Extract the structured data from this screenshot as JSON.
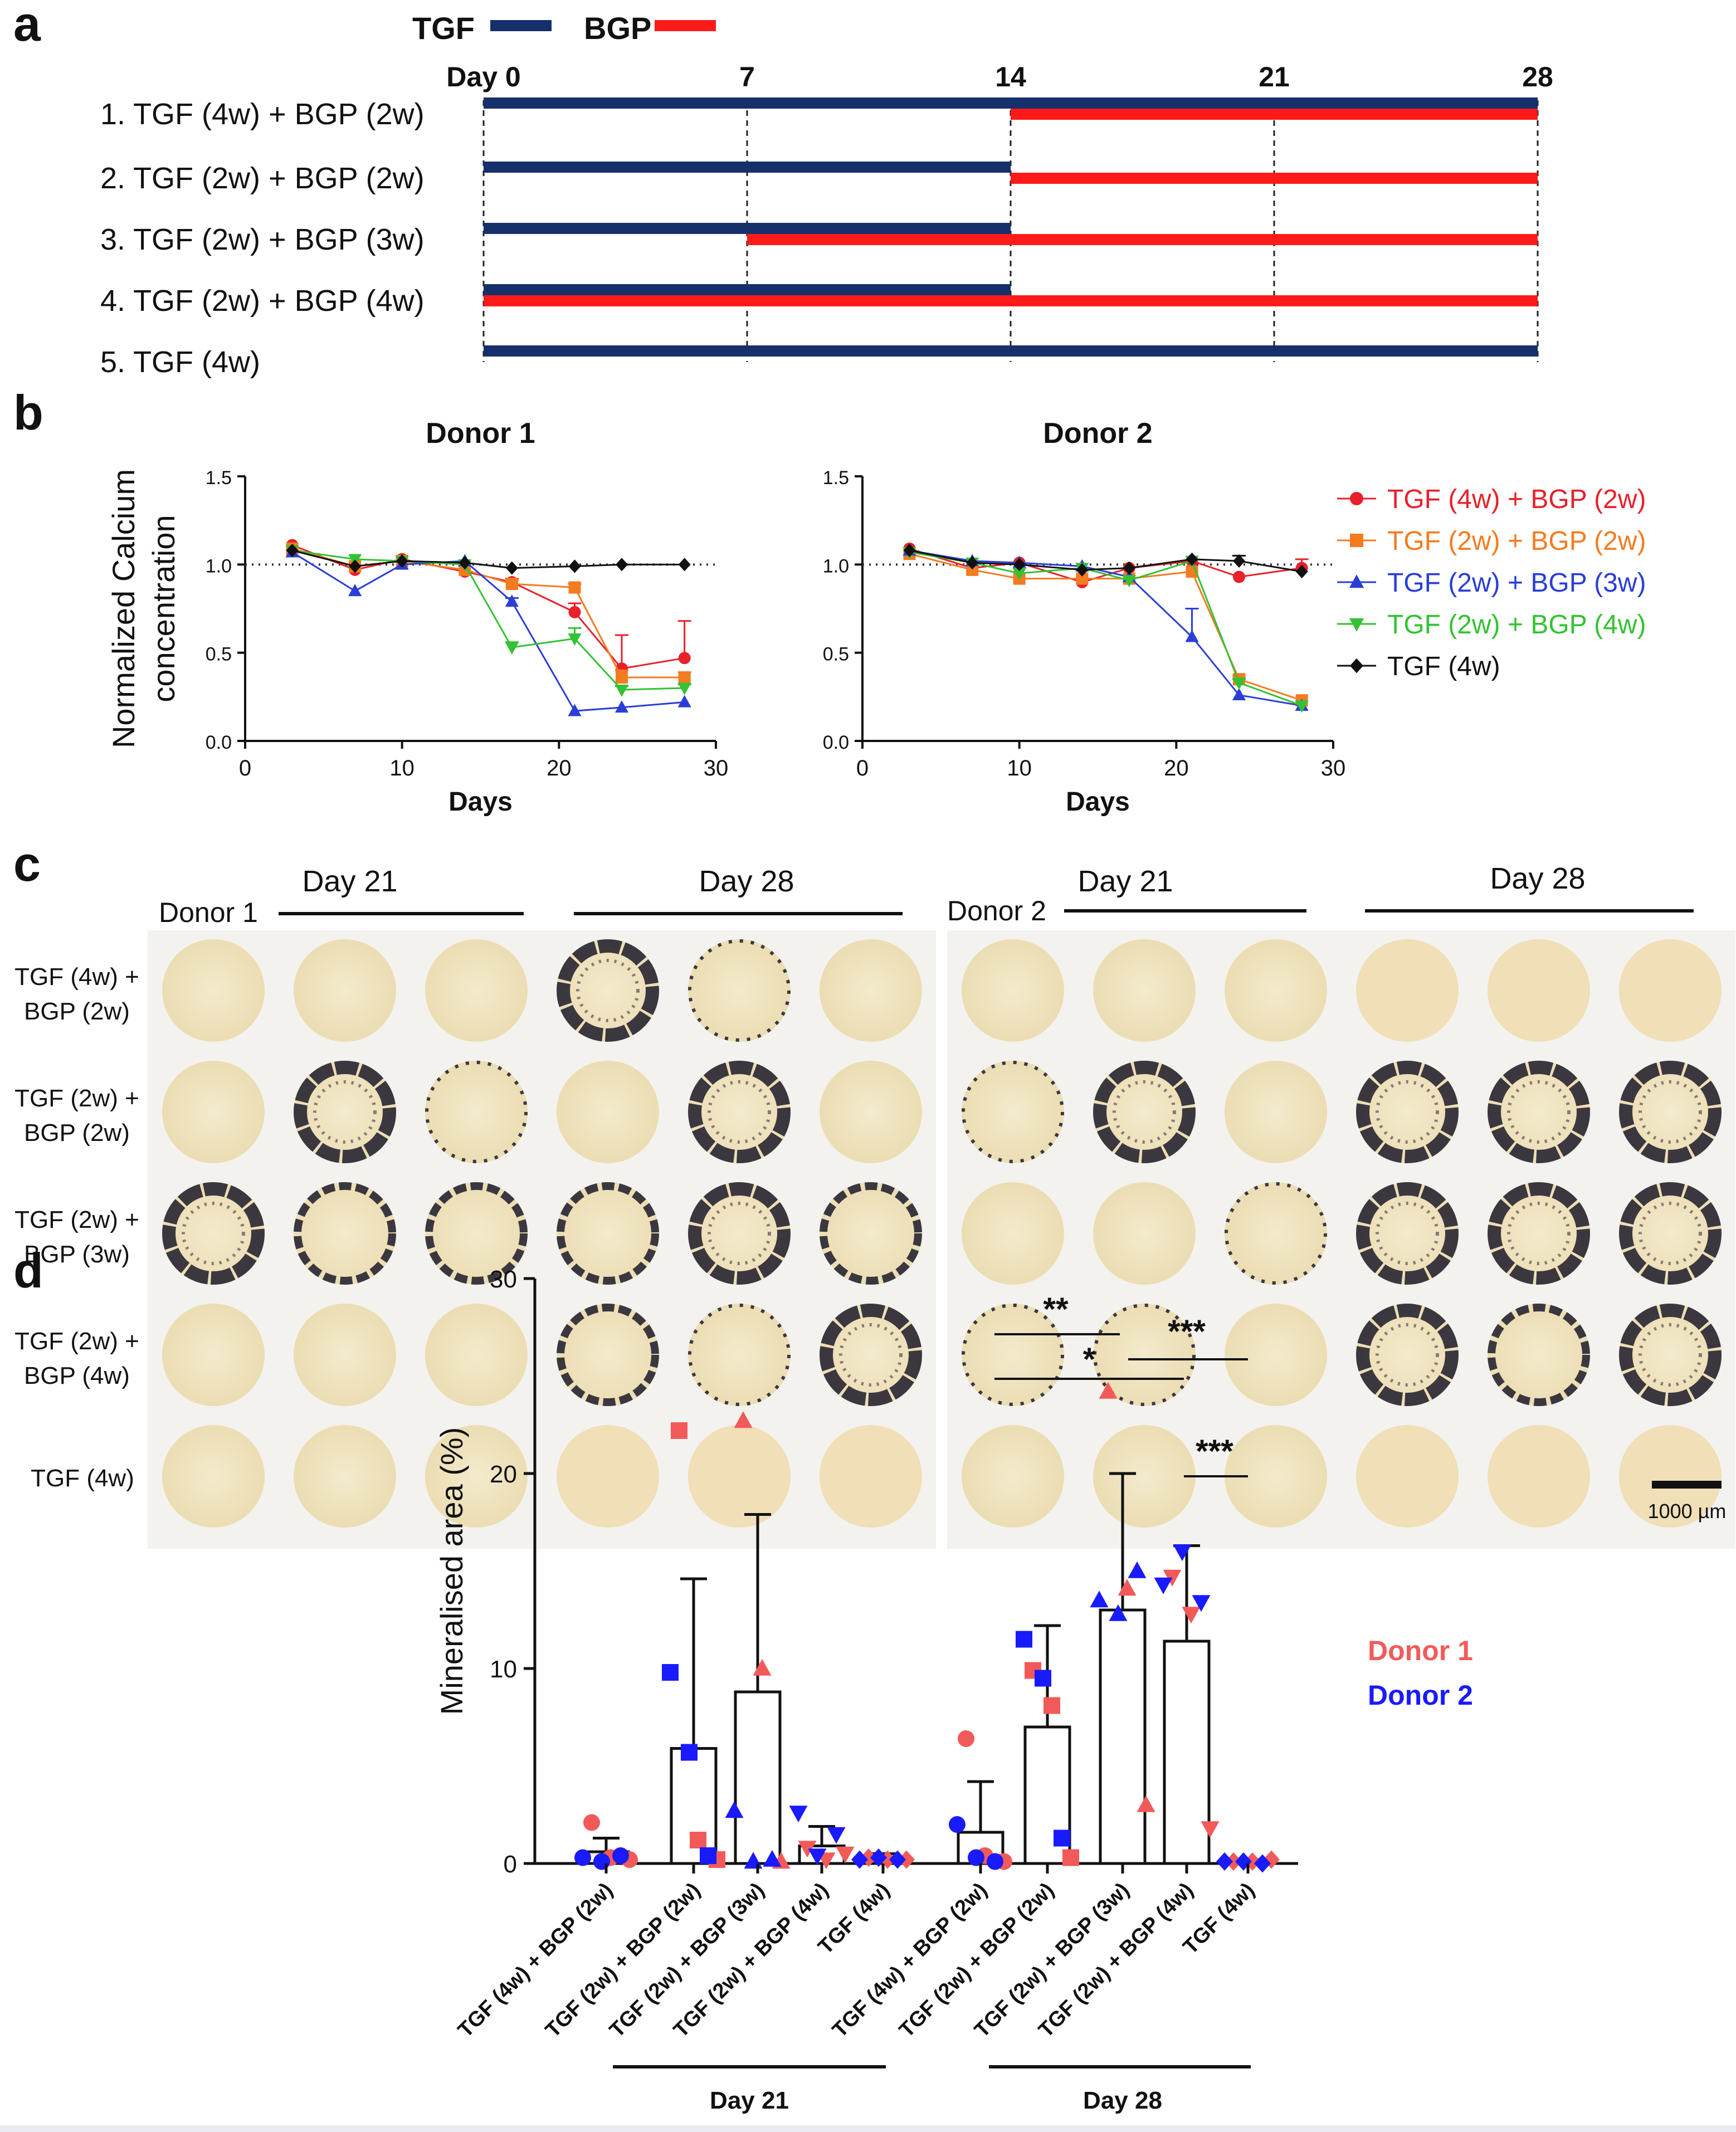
{
  "panels": {
    "a": "a",
    "b": "b",
    "c": "c",
    "d": "d"
  },
  "colors": {
    "tgf": "#15306b",
    "bgp": "#ff1a1a",
    "donor1": "#f25a5a",
    "donor2": "#1a1aff",
    "series": [
      "#e8202a",
      "#f47b20",
      "#2a3ed6",
      "#33c233",
      "#111111"
    ]
  },
  "panel_a": {
    "legend": {
      "tgf": "TGF",
      "bgp": "BGP"
    },
    "day_labels": [
      "Day 0",
      "7",
      "14",
      "21",
      "28"
    ],
    "rows": [
      {
        "label": "1. TGF (4w) + BGP (2w)",
        "tgf_days": [
          0,
          28
        ],
        "bgp_days": [
          14,
          28
        ]
      },
      {
        "label": "2. TGF (2w) + BGP (2w)",
        "tgf_days": [
          0,
          14
        ],
        "bgp_days": [
          14,
          28
        ]
      },
      {
        "label": "3. TGF (2w) + BGP (3w)",
        "tgf_days": [
          0,
          14
        ],
        "bgp_days": [
          7,
          28
        ]
      },
      {
        "label": "4. TGF (2w) + BGP (4w)",
        "tgf_days": [
          0,
          14
        ],
        "bgp_days": [
          0,
          28
        ]
      },
      {
        "label": "5. TGF (4w)",
        "tgf_days": [
          0,
          28
        ],
        "bgp_days": null
      }
    ]
  },
  "panel_c": {
    "group_labels": [
      "Day 21",
      "Day 28",
      "Day 21",
      "Day 28"
    ],
    "donor_labels": [
      "Donor 1",
      "Donor 2"
    ],
    "row_labels": [
      [
        "TGF (4w) +",
        "BGP (2w)"
      ],
      [
        "TGF (2w) +",
        "BGP (2w)"
      ],
      [
        "TGF (2w) +",
        "BGP (3w)"
      ],
      [
        "TGF (2w) +",
        "BGP (4w)"
      ],
      [
        "TGF (4w)"
      ]
    ],
    "scale_bar": "1000 µm",
    "mineral_grid": [
      [
        [
          0,
          0,
          0,
          3,
          1,
          0
        ],
        [
          0,
          0,
          0,
          0,
          0,
          0
        ]
      ],
      [
        [
          0,
          3,
          1,
          0,
          3,
          0
        ],
        [
          1,
          3,
          0,
          3,
          3,
          3
        ]
      ],
      [
        [
          3,
          2,
          2,
          2,
          3,
          2
        ],
        [
          0,
          0,
          1,
          3,
          3,
          3
        ]
      ],
      [
        [
          0,
          0,
          0,
          2,
          1,
          3
        ],
        [
          1,
          1,
          0,
          3,
          2,
          3
        ]
      ],
      [
        [
          0,
          0,
          0,
          0,
          0,
          0
        ],
        [
          0,
          0,
          0,
          0,
          0,
          0
        ]
      ]
    ]
  },
  "chart_data": [
    {
      "type": "line",
      "title": "Donor 1",
      "xlabel": "Days",
      "ylabel": "Normalized Calcium concentration",
      "xlim": [
        0,
        30
      ],
      "ylim": [
        0,
        1.5
      ],
      "xticks": [
        "0",
        "10",
        "20",
        "30"
      ],
      "yticks": [
        "0.0",
        "0.5",
        "1.0",
        "1.5"
      ],
      "reference_line": 1.0,
      "series": [
        {
          "name": "TGF (4w) + BGP (2w)",
          "marker": "circle",
          "x": [
            3,
            7,
            10,
            14,
            17,
            21,
            24,
            28
          ],
          "y": [
            1.11,
            0.97,
            1.03,
            0.96,
            0.9,
            0.73,
            0.41,
            0.47
          ],
          "err": [
            0.01,
            0.01,
            0.01,
            0.01,
            0.02,
            0.05,
            0.19,
            0.21
          ]
        },
        {
          "name": "TGF (2w) + BGP (2w)",
          "marker": "square",
          "x": [
            3,
            7,
            10,
            14,
            17,
            21,
            24,
            28
          ],
          "y": [
            1.09,
            0.99,
            1.02,
            0.97,
            0.89,
            0.87,
            0.36,
            0.36
          ],
          "err": [
            0.01,
            0.01,
            0.01,
            0.01,
            0.02,
            0.02,
            0.04,
            0.03
          ]
        },
        {
          "name": "TGF (2w) + BGP (3w)",
          "marker": "triangle-up",
          "x": [
            3,
            7,
            10,
            14,
            17,
            21,
            24,
            28
          ],
          "y": [
            1.07,
            0.85,
            1.0,
            1.02,
            0.79,
            0.17,
            0.19,
            0.22
          ],
          "err": [
            0.01,
            0.01,
            0.01,
            0.01,
            0.02,
            0.01,
            0.01,
            0.01
          ]
        },
        {
          "name": "TGF (2w) + BGP (4w)",
          "marker": "triangle-down",
          "x": [
            3,
            7,
            10,
            14,
            17,
            21,
            24,
            28
          ],
          "y": [
            1.08,
            1.03,
            1.02,
            1.0,
            0.53,
            0.58,
            0.29,
            0.3
          ],
          "err": [
            0.01,
            0.01,
            0.01,
            0.01,
            0.03,
            0.06,
            0.02,
            0.02
          ]
        },
        {
          "name": "TGF (4w)",
          "marker": "diamond",
          "x": [
            3,
            7,
            10,
            14,
            17,
            21,
            24,
            28
          ],
          "y": [
            1.08,
            0.99,
            1.02,
            1.01,
            0.98,
            0.99,
            1.0,
            1.0
          ],
          "err": [
            0.01,
            0.01,
            0.01,
            0.01,
            0.01,
            0.01,
            0.01,
            0.01
          ]
        }
      ]
    },
    {
      "type": "line",
      "title": "Donor 2",
      "xlabel": "Days",
      "ylabel": "",
      "xlim": [
        0,
        30
      ],
      "ylim": [
        0,
        1.5
      ],
      "xticks": [
        "0",
        "10",
        "20",
        "30"
      ],
      "yticks": [
        "0.0",
        "0.5",
        "1.0",
        "1.5"
      ],
      "reference_line": 1.0,
      "legend_position": "right",
      "series": [
        {
          "name": "TGF (4w) + BGP (2w)",
          "marker": "circle",
          "x": [
            3,
            7,
            10,
            14,
            17,
            21,
            24,
            28
          ],
          "y": [
            1.09,
            0.98,
            1.01,
            0.9,
            0.98,
            1.02,
            0.93,
            0.98
          ],
          "err": [
            0.01,
            0.01,
            0.01,
            0.01,
            0.01,
            0.01,
            0.01,
            0.05
          ]
        },
        {
          "name": "TGF (2w) + BGP (2w)",
          "marker": "square",
          "x": [
            3,
            7,
            10,
            14,
            17,
            21,
            24,
            28
          ],
          "y": [
            1.06,
            0.97,
            0.92,
            0.92,
            0.92,
            0.96,
            0.35,
            0.23
          ],
          "err": [
            0.01,
            0.01,
            0.01,
            0.01,
            0.01,
            0.01,
            0.02,
            0.01
          ]
        },
        {
          "name": "TGF (2w) + BGP (3w)",
          "marker": "triangle-up",
          "x": [
            3,
            7,
            10,
            14,
            17,
            21,
            24,
            28
          ],
          "y": [
            1.08,
            1.02,
            1.01,
            0.99,
            0.93,
            0.59,
            0.26,
            0.2
          ],
          "err": [
            0.01,
            0.01,
            0.01,
            0.01,
            0.01,
            0.16,
            0.01,
            0.01
          ]
        },
        {
          "name": "TGF (2w) + BGP (4w)",
          "marker": "triangle-down",
          "x": [
            3,
            7,
            10,
            14,
            17,
            21,
            24,
            28
          ],
          "y": [
            1.07,
            1.01,
            0.95,
            0.98,
            0.91,
            1.02,
            0.33,
            0.2
          ],
          "err": [
            0.01,
            0.01,
            0.01,
            0.01,
            0.01,
            0.01,
            0.02,
            0.01
          ]
        },
        {
          "name": "TGF (4w)",
          "marker": "diamond",
          "x": [
            3,
            7,
            10,
            14,
            17,
            21,
            24,
            28
          ],
          "y": [
            1.08,
            1.01,
            1.0,
            0.97,
            0.98,
            1.03,
            1.02,
            0.96
          ],
          "err": [
            0.01,
            0.01,
            0.01,
            0.01,
            0.01,
            0.01,
            0.03,
            0.01
          ]
        }
      ]
    },
    {
      "type": "bar",
      "title": "",
      "ylabel": "Mineralised area (%)",
      "ylim": [
        0,
        30
      ],
      "yticks": [
        "0",
        "10",
        "20",
        "30"
      ],
      "categories": [
        "TGF (4w) + BGP (2w)",
        "TGF (2w) + BGP (2w)",
        "TGF (2w) + BGP (3w)",
        "TGF (2w) + BGP (4w)",
        "TGF (4w)",
        "TGF (4w) + BGP (2w)",
        "TGF (2w) + BGP (2w)",
        "TGF (2w) + BGP (3w)",
        "TGF (2w) + BGP (4w)",
        "TGF (4w)"
      ],
      "groups": [
        {
          "label": "Day 21",
          "indices": [
            0,
            1,
            2,
            3,
            4
          ]
        },
        {
          "label": "Day 28",
          "indices": [
            5,
            6,
            7,
            8,
            9
          ]
        }
      ],
      "markers": [
        "circle",
        "square",
        "triangle-up",
        "triangle-down",
        "diamond",
        "circle",
        "square",
        "triangle-up",
        "triangle-down",
        "diamond"
      ],
      "values": [
        0.6,
        5.9,
        8.8,
        0.9,
        0.3,
        1.6,
        7.0,
        13.0,
        11.4,
        0.1
      ],
      "sd": [
        0.7,
        8.7,
        9.1,
        1.0,
        0.2,
        2.6,
        5.2,
        7.0,
        4.9,
        0.1
      ],
      "points_donor1": [
        [
          2.1,
          0.3,
          0.2
        ],
        [
          22.2,
          1.2,
          0.2
        ],
        [
          22.7,
          10.0,
          0.1
        ],
        [
          0.8,
          0.2,
          0.5
        ],
        [
          0.3,
          0.2,
          0.2
        ],
        [
          6.4,
          0.4,
          0.1
        ],
        [
          9.9,
          8.1,
          0.3
        ],
        [
          24.2,
          14.1,
          3.0
        ],
        [
          14.7,
          12.8,
          1.8
        ],
        [
          0.1,
          0.1,
          0.2
        ]
      ],
      "points_donor2": [
        [
          0.3,
          0.1,
          0.4
        ],
        [
          9.8,
          5.7,
          0.4
        ],
        [
          2.7,
          0.1,
          0.2
        ],
        [
          2.6,
          0.4,
          1.5
        ],
        [
          0.2,
          0.3,
          0.2
        ],
        [
          2.0,
          0.3,
          0.1
        ],
        [
          11.5,
          9.5,
          1.3
        ],
        [
          13.5,
          12.8,
          15.0
        ],
        [
          14.3,
          16.0,
          13.4
        ],
        [
          0.1,
          0.1,
          0.0
        ]
      ],
      "significance": [
        {
          "from": 5,
          "to": 7,
          "label": "**"
        },
        {
          "from": 5,
          "to": 8,
          "label": "*"
        },
        {
          "from": 7,
          "to": 9,
          "label": "***"
        },
        {
          "from": 8,
          "to": 9,
          "label": "***"
        }
      ],
      "legend": [
        "Donor 1",
        "Donor 2"
      ]
    }
  ]
}
